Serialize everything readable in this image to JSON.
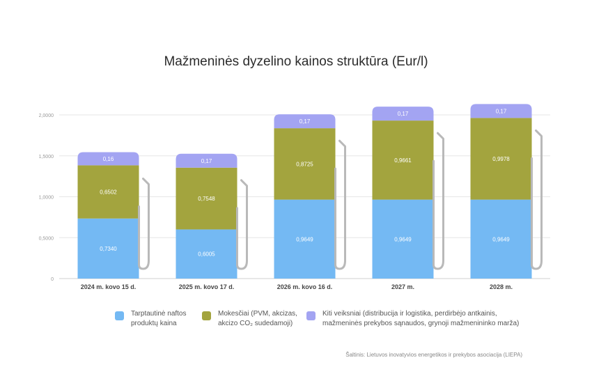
{
  "chart_data": {
    "type": "bar",
    "stacked": true,
    "title": "Mažmeninės dyzelino kainos struktūra (Eur/l)",
    "categories": [
      "2024 m. kovo 15 d.",
      "2025 m. kovo 17 d.",
      "2026 m. kovo 16 d.",
      "2027 m.",
      "2028 m."
    ],
    "series": [
      {
        "name": "Tarptautinė naftos produktų kaina",
        "color": "#74b9f3",
        "values": [
          0.734,
          0.6005,
          0.9649,
          0.9649,
          0.9649
        ],
        "labels": [
          "0,7340",
          "0,6005",
          "0,9649",
          "0,9649",
          "0,9649"
        ]
      },
      {
        "name": "Mokesčiai (PVM, akcizas, akcizo CO₂ sudedamoji)",
        "color": "#a3a43e",
        "values": [
          0.6502,
          0.7548,
          0.8725,
          0.9661,
          0.9978
        ],
        "labels": [
          "0,6502",
          "0,7548",
          "0,8725",
          "0,9661",
          "0,9978"
        ]
      },
      {
        "name": "Kiti veiksniai (distribucija ir logistika, perdirbėjo antkainis, mažmeninės prekybos sąnaudos, grynoji mažmenininko marža)",
        "color": "#a3a4f2",
        "values": [
          0.16,
          0.17,
          0.17,
          0.17,
          0.17
        ],
        "labels": [
          "0,16",
          "0,17",
          "0,17",
          "0,17",
          "0,17"
        ]
      }
    ],
    "yticks": [
      0,
      0.5,
      1.0,
      1.5,
      2.0
    ],
    "ytick_labels": [
      "0",
      "0,5000",
      "1,0000",
      "1,5000",
      "2,0000"
    ],
    "ylim": [
      0,
      2.0
    ],
    "grid": true,
    "legend_position": "bottom",
    "legend": [
      {
        "label_lines": [
          "Tarptautinė naftos",
          "produktų kaina"
        ]
      },
      {
        "label_lines": [
          "Mokesčiai (PVM, akcizas,",
          "akcizo CO₂ sudedamoji)"
        ]
      },
      {
        "label_lines": [
          "Kiti veiksniai (distribucija ir logistika, perdirbėjo antkainis,",
          "mažmeninės prekybos sąnaudos, grynoji mažmenininko marža)"
        ]
      }
    ],
    "source": "Šaltinis: Lietuvos inovatyvios energetikos ir prekybos asociacija (LIEPA)"
  }
}
